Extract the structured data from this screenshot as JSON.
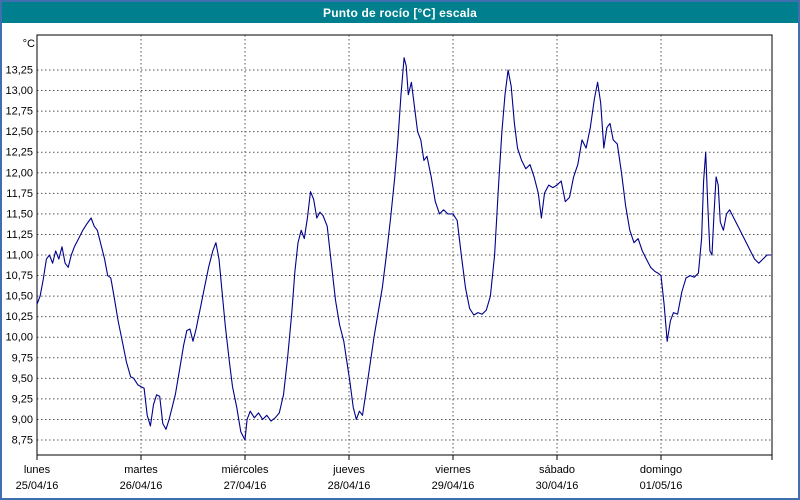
{
  "window": {
    "title": "Punto de rocío [°C] escala"
  },
  "colors": {
    "titlebar_bg": "#00808e",
    "frame_border": "#3f6fae",
    "series_line": "#00008b",
    "grid": "#555555"
  },
  "chart_data": {
    "type": "line",
    "title": "Punto de rocío [°C] escala",
    "ylabel": "°C",
    "xlabel": "",
    "ylim": [
      8.75,
      13.25
    ],
    "ytick_step": 0.25,
    "ytick_labels": [
      "8,75",
      "9,00",
      "9,25",
      "9,50",
      "9,75",
      "10,00",
      "10,25",
      "10,50",
      "10,75",
      "11,00",
      "11,25",
      "11,50",
      "11,75",
      "12,00",
      "12,25",
      "12,50",
      "12,75",
      "13,00",
      "13,25"
    ],
    "grid": "dashed",
    "legend_position": "none",
    "x_unit": "days",
    "categories": [
      {
        "name": "lunes",
        "date": "25/04/16"
      },
      {
        "name": "martes",
        "date": "26/04/16"
      },
      {
        "name": "miércoles",
        "date": "27/04/16"
      },
      {
        "name": "jueves",
        "date": "28/04/16"
      },
      {
        "name": "viernes",
        "date": "29/04/16"
      },
      {
        "name": "sábado",
        "date": "30/04/16"
      },
      {
        "name": "domingo",
        "date": "01/05/16"
      }
    ],
    "series": [
      {
        "name": "Punto de rocío",
        "color": "#00008b",
        "points": [
          [
            0,
            10.4
          ],
          [
            0.03,
            10.5
          ],
          [
            0.06,
            10.7
          ],
          [
            0.09,
            10.95
          ],
          [
            0.12,
            11.0
          ],
          [
            0.15,
            10.9
          ],
          [
            0.18,
            11.05
          ],
          [
            0.21,
            10.95
          ],
          [
            0.24,
            11.1
          ],
          [
            0.27,
            10.9
          ],
          [
            0.3,
            10.85
          ],
          [
            0.33,
            11.0
          ],
          [
            0.36,
            11.1
          ],
          [
            0.4,
            11.2
          ],
          [
            0.44,
            11.3
          ],
          [
            0.48,
            11.38
          ],
          [
            0.52,
            11.45
          ],
          [
            0.55,
            11.35
          ],
          [
            0.58,
            11.3
          ],
          [
            0.62,
            11.1
          ],
          [
            0.65,
            10.95
          ],
          [
            0.68,
            10.75
          ],
          [
            0.71,
            10.72
          ],
          [
            0.74,
            10.5
          ],
          [
            0.78,
            10.2
          ],
          [
            0.82,
            9.95
          ],
          [
            0.86,
            9.7
          ],
          [
            0.9,
            9.52
          ],
          [
            0.93,
            9.5
          ],
          [
            0.97,
            9.42
          ],
          [
            1.0,
            9.4
          ],
          [
            1.03,
            9.38
          ],
          [
            1.06,
            9.05
          ],
          [
            1.09,
            8.92
          ],
          [
            1.12,
            9.18
          ],
          [
            1.15,
            9.3
          ],
          [
            1.18,
            9.28
          ],
          [
            1.21,
            8.95
          ],
          [
            1.24,
            8.88
          ],
          [
            1.27,
            9.0
          ],
          [
            1.3,
            9.15
          ],
          [
            1.33,
            9.3
          ],
          [
            1.37,
            9.6
          ],
          [
            1.41,
            9.9
          ],
          [
            1.44,
            10.08
          ],
          [
            1.47,
            10.1
          ],
          [
            1.5,
            9.95
          ],
          [
            1.53,
            10.1
          ],
          [
            1.57,
            10.35
          ],
          [
            1.61,
            10.6
          ],
          [
            1.65,
            10.85
          ],
          [
            1.69,
            11.05
          ],
          [
            1.72,
            11.15
          ],
          [
            1.75,
            10.95
          ],
          [
            1.78,
            10.55
          ],
          [
            1.81,
            10.15
          ],
          [
            1.85,
            9.7
          ],
          [
            1.88,
            9.4
          ],
          [
            1.92,
            9.15
          ],
          [
            1.96,
            8.85
          ],
          [
            2.0,
            8.75
          ],
          [
            2.02,
            9.0
          ],
          [
            2.05,
            9.1
          ],
          [
            2.09,
            9.02
          ],
          [
            2.13,
            9.08
          ],
          [
            2.17,
            9.0
          ],
          [
            2.21,
            9.05
          ],
          [
            2.25,
            8.98
          ],
          [
            2.29,
            9.02
          ],
          [
            2.33,
            9.08
          ],
          [
            2.37,
            9.3
          ],
          [
            2.41,
            9.75
          ],
          [
            2.45,
            10.3
          ],
          [
            2.48,
            10.8
          ],
          [
            2.51,
            11.15
          ],
          [
            2.54,
            11.3
          ],
          [
            2.57,
            11.2
          ],
          [
            2.6,
            11.45
          ],
          [
            2.63,
            11.77
          ],
          [
            2.66,
            11.68
          ],
          [
            2.69,
            11.45
          ],
          [
            2.72,
            11.52
          ],
          [
            2.75,
            11.48
          ],
          [
            2.79,
            11.35
          ],
          [
            2.83,
            10.9
          ],
          [
            2.87,
            10.45
          ],
          [
            2.91,
            10.15
          ],
          [
            2.95,
            9.95
          ],
          [
            2.98,
            9.7
          ],
          [
            3.01,
            9.45
          ],
          [
            3.04,
            9.15
          ],
          [
            3.07,
            9.0
          ],
          [
            3.1,
            9.1
          ],
          [
            3.13,
            9.05
          ],
          [
            3.16,
            9.3
          ],
          [
            3.2,
            9.65
          ],
          [
            3.24,
            10.0
          ],
          [
            3.28,
            10.3
          ],
          [
            3.32,
            10.6
          ],
          [
            3.36,
            11.0
          ],
          [
            3.4,
            11.45
          ],
          [
            3.44,
            11.95
          ],
          [
            3.47,
            12.4
          ],
          [
            3.5,
            12.95
          ],
          [
            3.53,
            13.4
          ],
          [
            3.55,
            13.3
          ],
          [
            3.57,
            12.95
          ],
          [
            3.6,
            13.1
          ],
          [
            3.63,
            12.8
          ],
          [
            3.66,
            12.5
          ],
          [
            3.69,
            12.4
          ],
          [
            3.72,
            12.15
          ],
          [
            3.75,
            12.2
          ],
          [
            3.79,
            11.95
          ],
          [
            3.83,
            11.65
          ],
          [
            3.87,
            11.5
          ],
          [
            3.91,
            11.55
          ],
          [
            3.95,
            11.5
          ],
          [
            4.0,
            11.5
          ],
          [
            4.04,
            11.42
          ],
          [
            4.08,
            11.0
          ],
          [
            4.12,
            10.6
          ],
          [
            4.16,
            10.35
          ],
          [
            4.2,
            10.27
          ],
          [
            4.24,
            10.3
          ],
          [
            4.28,
            10.28
          ],
          [
            4.32,
            10.33
          ],
          [
            4.36,
            10.5
          ],
          [
            4.4,
            11.0
          ],
          [
            4.44,
            11.9
          ],
          [
            4.47,
            12.5
          ],
          [
            4.5,
            12.95
          ],
          [
            4.53,
            13.25
          ],
          [
            4.56,
            13.05
          ],
          [
            4.59,
            12.6
          ],
          [
            4.62,
            12.3
          ],
          [
            4.66,
            12.15
          ],
          [
            4.7,
            12.05
          ],
          [
            4.74,
            12.1
          ],
          [
            4.78,
            11.95
          ],
          [
            4.82,
            11.75
          ],
          [
            4.85,
            11.45
          ],
          [
            4.88,
            11.75
          ],
          [
            4.92,
            11.85
          ],
          [
            4.96,
            11.82
          ],
          [
            5.0,
            11.85
          ],
          [
            5.04,
            11.9
          ],
          [
            5.08,
            11.65
          ],
          [
            5.12,
            11.7
          ],
          [
            5.16,
            11.95
          ],
          [
            5.2,
            12.1
          ],
          [
            5.24,
            12.4
          ],
          [
            5.28,
            12.3
          ],
          [
            5.32,
            12.55
          ],
          [
            5.36,
            12.9
          ],
          [
            5.39,
            13.1
          ],
          [
            5.42,
            12.85
          ],
          [
            5.45,
            12.3
          ],
          [
            5.48,
            12.55
          ],
          [
            5.51,
            12.6
          ],
          [
            5.54,
            12.4
          ],
          [
            5.58,
            12.35
          ],
          [
            5.62,
            12.0
          ],
          [
            5.66,
            11.6
          ],
          [
            5.7,
            11.3
          ],
          [
            5.74,
            11.15
          ],
          [
            5.78,
            11.2
          ],
          [
            5.82,
            11.05
          ],
          [
            5.86,
            10.95
          ],
          [
            5.9,
            10.85
          ],
          [
            5.94,
            10.8
          ],
          [
            5.97,
            10.78
          ],
          [
            6.0,
            10.75
          ],
          [
            6.03,
            10.4
          ],
          [
            6.06,
            9.95
          ],
          [
            6.09,
            10.2
          ],
          [
            6.12,
            10.3
          ],
          [
            6.16,
            10.28
          ],
          [
            6.2,
            10.55
          ],
          [
            6.24,
            10.72
          ],
          [
            6.28,
            10.75
          ],
          [
            6.32,
            10.73
          ],
          [
            6.36,
            10.78
          ],
          [
            6.39,
            11.2
          ],
          [
            6.41,
            11.9
          ],
          [
            6.43,
            12.25
          ],
          [
            6.45,
            11.6
          ],
          [
            6.47,
            11.05
          ],
          [
            6.49,
            11.0
          ],
          [
            6.51,
            11.5
          ],
          [
            6.53,
            11.95
          ],
          [
            6.55,
            11.85
          ],
          [
            6.57,
            11.4
          ],
          [
            6.6,
            11.3
          ],
          [
            6.63,
            11.5
          ],
          [
            6.66,
            11.55
          ],
          [
            6.7,
            11.45
          ],
          [
            6.74,
            11.35
          ],
          [
            6.78,
            11.25
          ],
          [
            6.82,
            11.15
          ],
          [
            6.86,
            11.05
          ],
          [
            6.9,
            10.95
          ],
          [
            6.94,
            10.9
          ],
          [
            6.98,
            10.95
          ],
          [
            7.02,
            11.0
          ],
          [
            7.06,
            11.0
          ]
        ]
      }
    ]
  }
}
